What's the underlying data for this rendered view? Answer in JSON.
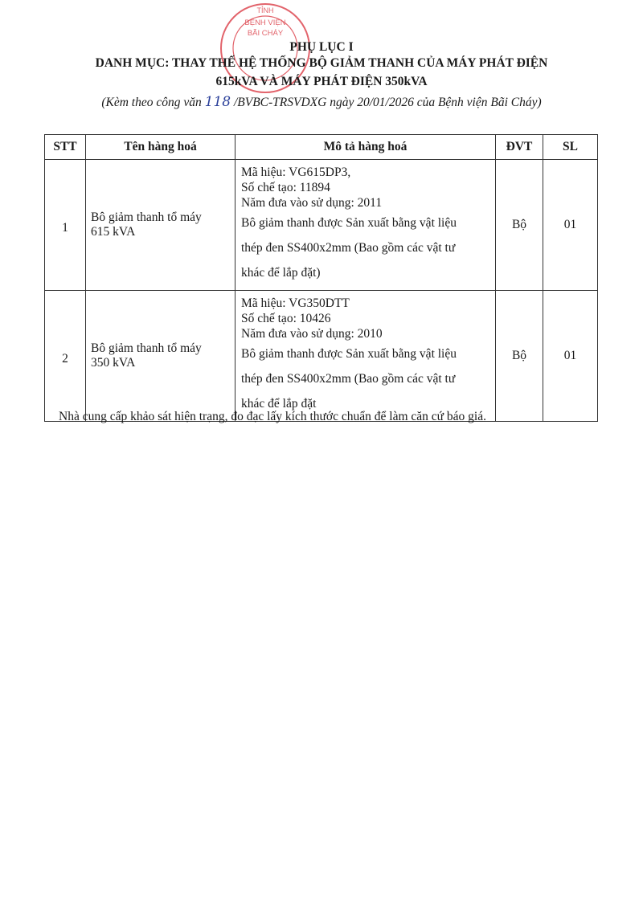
{
  "stamp": {
    "top_text": "TỈNH",
    "line1": "BỆNH VIỆN",
    "line2": "BÃI CHÁY",
    "color": "#d9303a"
  },
  "header": {
    "appendix": "PHỤ LỤC I",
    "title_line1": "DANH MỤC: THAY THẾ HỆ THỐNG BỘ GIẢM THANH CỦA MÁY PHÁT ĐIỆN",
    "title_line2": "615kVA VÀ MÁY PHÁT ĐIỆN 350kVA",
    "ref_prefix": "(Kèm theo công văn ",
    "ref_number_handwritten": "118",
    "ref_suffix": " /BVBC-TRSVDXG ngày 20/01/2026 của Bệnh viện Bãi Cháy)"
  },
  "table": {
    "columns": [
      "STT",
      "Tên hàng hoá",
      "Mô tả hàng hoá",
      "ĐVT",
      "SL"
    ],
    "rows": [
      {
        "stt": "1",
        "name_line1": "Bô giảm thanh tổ máy",
        "name_line2": "615 kVA",
        "desc": [
          "Mã hiệu: VG615DP3,",
          "Số chế tạo: 11894",
          "Năm đưa vào sử dụng: 2011",
          "Bô giảm thanh được Sản xuất bằng vật liệu",
          "thép đen SS400x2mm (Bao gồm các vật tư",
          "khác để lắp đặt)"
        ],
        "unit": "Bộ",
        "qty": "01"
      },
      {
        "stt": "2",
        "name_line1": "Bô giảm thanh tổ máy",
        "name_line2": "350 kVA",
        "desc": [
          "Mã hiệu: VG350DTT",
          "Số chế tạo: 10426",
          "Năm đưa vào sử dụng: 2010",
          "Bô giảm thanh được Sản xuất bằng vật liệu",
          "thép đen SS400x2mm (Bao gồm các vật tư",
          "khác để lắp đặt"
        ],
        "unit": "Bộ",
        "qty": "01"
      }
    ]
  },
  "note": "Nhà cung cấp khảo sát hiện trạng, đo đạc lấy kích thước chuẩn để làm căn cứ báo giá."
}
